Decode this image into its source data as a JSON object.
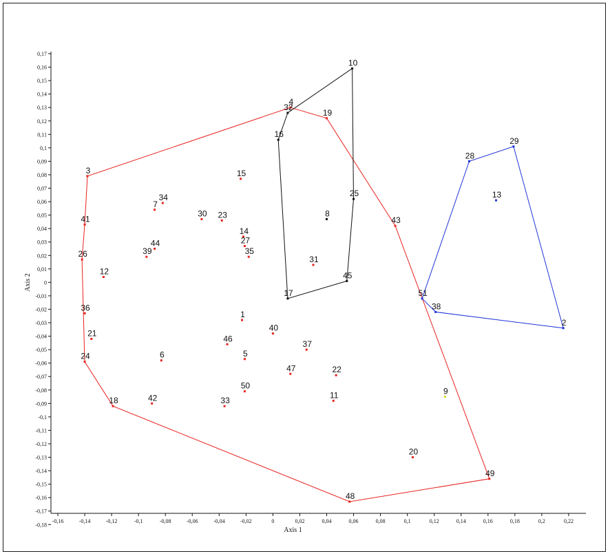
{
  "chart_data": {
    "type": "scatter",
    "xlabel": "Axis 1",
    "ylabel": "Axis 2",
    "xlim": [
      -0.16,
      0.24
    ],
    "ylim": [
      -0.18,
      0.175
    ],
    "x_ticks": [
      "-0,16",
      "-0,14",
      "-0,12",
      "-0,1",
      "-0,08",
      "-0,06",
      "-0,04",
      "-0,02",
      "0",
      "0,02",
      "0,04",
      "0,06",
      "0,08",
      "0,1",
      "0,12",
      "0,14",
      "0,16",
      "0,18",
      "0,2",
      "0,22"
    ],
    "y_ticks": [
      "0,17",
      "0,16",
      "0,15",
      "0,14",
      "0,13",
      "0,12",
      "0,11",
      "0,1",
      "0,09",
      "0,08",
      "0,07",
      "0,06",
      "0,05",
      "0,04",
      "0,03",
      "0,02",
      "0,01",
      "0",
      "-0,01",
      "-0,02",
      "-0,03",
      "-0,04",
      "-0,05",
      "-0,06",
      "-0,07",
      "-0,08",
      "-0,09",
      "-0,1",
      "-0,11",
      "-0,12",
      "-0,13",
      "-0,14",
      "-0,15",
      "-0,16",
      "-0,17",
      "-0,18"
    ],
    "colors": {
      "red": "#e8231f",
      "black": "#111111",
      "blue": "#1f34d6",
      "yellow": "#d8d82a"
    },
    "points": [
      {
        "label": "1",
        "x": -0.023,
        "y": -0.028,
        "color": "red"
      },
      {
        "label": "2",
        "x": 0.216,
        "y": -0.034,
        "color": "blue"
      },
      {
        "label": "3",
        "x": -0.138,
        "y": 0.079,
        "color": "red"
      },
      {
        "label": "4",
        "x": 0.013,
        "y": 0.13,
        "color": "red"
      },
      {
        "label": "5",
        "x": -0.021,
        "y": -0.057,
        "color": "red"
      },
      {
        "label": "6",
        "x": -0.083,
        "y": -0.058,
        "color": "red"
      },
      {
        "label": "7",
        "x": -0.088,
        "y": 0.054,
        "color": "red"
      },
      {
        "label": "8",
        "x": 0.04,
        "y": 0.047,
        "color": "black"
      },
      {
        "label": "9",
        "x": 0.128,
        "y": -0.085,
        "color": "yellow"
      },
      {
        "label": "10",
        "x": 0.059,
        "y": 0.159,
        "color": "black"
      },
      {
        "label": "11",
        "x": 0.045,
        "y": -0.088,
        "color": "red"
      },
      {
        "label": "12",
        "x": -0.126,
        "y": 0.004,
        "color": "red"
      },
      {
        "label": "13",
        "x": 0.166,
        "y": 0.061,
        "color": "blue"
      },
      {
        "label": "14",
        "x": -0.022,
        "y": 0.034,
        "color": "red"
      },
      {
        "label": "15",
        "x": -0.024,
        "y": 0.077,
        "color": "red"
      },
      {
        "label": "16",
        "x": 0.004,
        "y": 0.106,
        "color": "black"
      },
      {
        "label": "17",
        "x": 0.011,
        "y": -0.012,
        "color": "black"
      },
      {
        "label": "18",
        "x": -0.119,
        "y": -0.092,
        "color": "red"
      },
      {
        "label": "19",
        "x": 0.04,
        "y": 0.122,
        "color": "red"
      },
      {
        "label": "20",
        "x": 0.104,
        "y": -0.13,
        "color": "red"
      },
      {
        "label": "21",
        "x": -0.135,
        "y": -0.042,
        "color": "red"
      },
      {
        "label": "22",
        "x": 0.047,
        "y": -0.069,
        "color": "red"
      },
      {
        "label": "23",
        "x": -0.038,
        "y": 0.046,
        "color": "red"
      },
      {
        "label": "24",
        "x": -0.14,
        "y": -0.059,
        "color": "red"
      },
      {
        "label": "25",
        "x": 0.06,
        "y": 0.062,
        "color": "black"
      },
      {
        "label": "26",
        "x": -0.142,
        "y": 0.017,
        "color": "red"
      },
      {
        "label": "27",
        "x": -0.021,
        "y": 0.027,
        "color": "red"
      },
      {
        "label": "28",
        "x": 0.146,
        "y": 0.09,
        "color": "blue"
      },
      {
        "label": "29",
        "x": 0.179,
        "y": 0.101,
        "color": "blue"
      },
      {
        "label": "30",
        "x": -0.053,
        "y": 0.047,
        "color": "red"
      },
      {
        "label": "31",
        "x": 0.03,
        "y": 0.013,
        "color": "red"
      },
      {
        "label": "32",
        "x": 0.011,
        "y": 0.126,
        "color": "black"
      },
      {
        "label": "33",
        "x": -0.036,
        "y": -0.092,
        "color": "red"
      },
      {
        "label": "34",
        "x": -0.082,
        "y": 0.059,
        "color": "red"
      },
      {
        "label": "35",
        "x": -0.018,
        "y": 0.019,
        "color": "red"
      },
      {
        "label": "36",
        "x": -0.14,
        "y": -0.023,
        "color": "red"
      },
      {
        "label": "37",
        "x": 0.025,
        "y": -0.05,
        "color": "red"
      },
      {
        "label": "38",
        "x": 0.121,
        "y": -0.022,
        "color": "blue"
      },
      {
        "label": "39",
        "x": -0.094,
        "y": 0.019,
        "color": "red"
      },
      {
        "label": "40",
        "x": 0.0,
        "y": -0.038,
        "color": "red"
      },
      {
        "label": "41",
        "x": -0.14,
        "y": 0.043,
        "color": "red"
      },
      {
        "label": "42",
        "x": -0.09,
        "y": -0.09,
        "color": "red"
      },
      {
        "label": "43",
        "x": 0.091,
        "y": 0.042,
        "color": "red"
      },
      {
        "label": "44",
        "x": -0.088,
        "y": 0.025,
        "color": "red"
      },
      {
        "label": "45",
        "x": 0.055,
        "y": 0.001,
        "color": "black"
      },
      {
        "label": "46",
        "x": -0.034,
        "y": -0.046,
        "color": "red"
      },
      {
        "label": "47",
        "x": 0.013,
        "y": -0.068,
        "color": "red"
      },
      {
        "label": "48",
        "x": 0.057,
        "y": -0.163,
        "color": "red"
      },
      {
        "label": "49",
        "x": 0.161,
        "y": -0.146,
        "color": "red"
      },
      {
        "label": "50",
        "x": -0.021,
        "y": -0.081,
        "color": "red"
      },
      {
        "label": "51",
        "x": 0.111,
        "y": -0.012,
        "color": "blue"
      }
    ],
    "hulls": [
      {
        "color": "red",
        "vertices": [
          "4",
          "19",
          "43",
          "49",
          "48",
          "18",
          "24",
          "26",
          "41",
          "3"
        ]
      },
      {
        "color": "black",
        "vertices": [
          "10",
          "25",
          "45",
          "17",
          "16",
          "32"
        ]
      },
      {
        "color": "blue",
        "vertices": [
          "29",
          "2",
          "38",
          "51",
          "28"
        ]
      }
    ]
  }
}
